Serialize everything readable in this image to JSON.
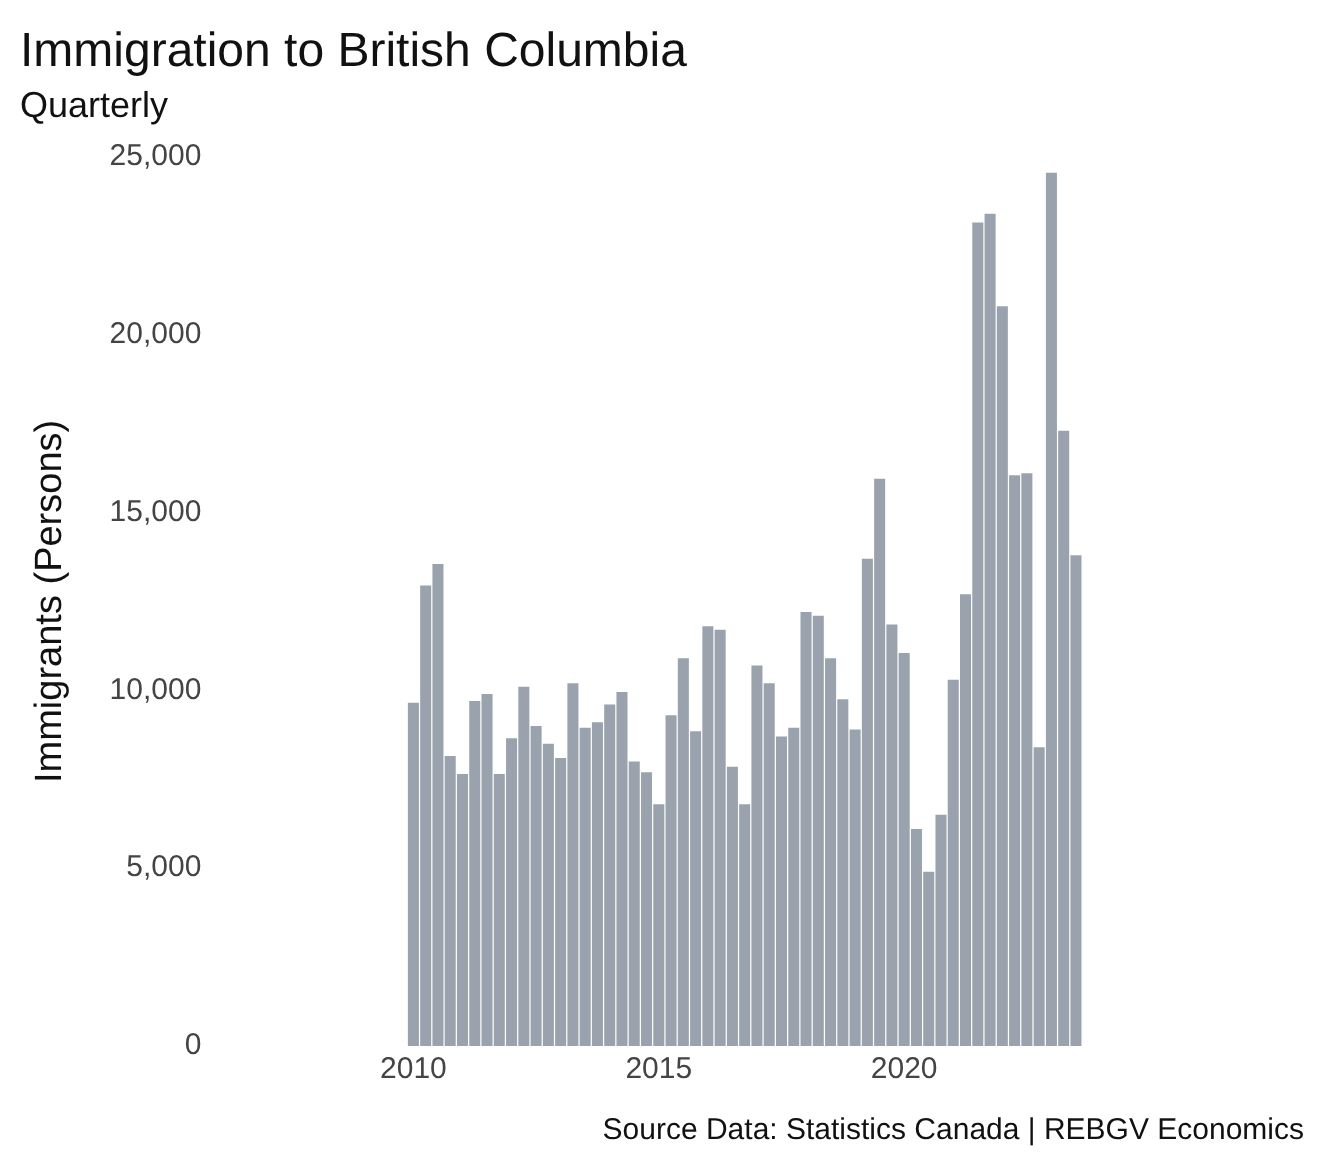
{
  "chart_data": {
    "type": "bar",
    "title": "Immigration to British Columbia",
    "subtitle": "Quarterly",
    "ylabel": "Immigrants (Persons)",
    "annotations": [
      "Source Data: Statistics Canada | REBGV Economics"
    ],
    "x": [
      "2010-01",
      "2010-04",
      "2010-07",
      "2010-10",
      "2011-01",
      "2011-04",
      "2011-07",
      "2011-10",
      "2012-01",
      "2012-04",
      "2012-07",
      "2012-10",
      "2013-01",
      "2013-04",
      "2013-07",
      "2013-10",
      "2014-01",
      "2014-04",
      "2014-07",
      "2014-10",
      "2015-01",
      "2015-04",
      "2015-07",
      "2015-10",
      "2016-01",
      "2016-04",
      "2016-07",
      "2016-10",
      "2017-01",
      "2017-04",
      "2017-07",
      "2017-10",
      "2018-01",
      "2018-04",
      "2018-07",
      "2018-10",
      "2019-01",
      "2019-04",
      "2019-07",
      "2019-10",
      "2020-01",
      "2020-04",
      "2020-07",
      "2020-10",
      "2021-01",
      "2021-04",
      "2021-07",
      "2021-10",
      "2022-01",
      "2022-04",
      "2022-07",
      "2022-10",
      "2023-01",
      "2023-04",
      "2023-07"
    ],
    "values": [
      9650,
      12950,
      13550,
      8150,
      7650,
      9700,
      9900,
      7650,
      8650,
      10100,
      9000,
      8500,
      8100,
      10200,
      8950,
      9100,
      9600,
      9950,
      8000,
      7700,
      6800,
      9300,
      10900,
      8850,
      11800,
      11700,
      7850,
      6800,
      10700,
      10200,
      8700,
      8950,
      12200,
      12100,
      10900,
      9750,
      8900,
      13700,
      15950,
      11850,
      11050,
      6100,
      4900,
      6500,
      10300,
      12700,
      23150,
      23400,
      20800,
      16050,
      16100,
      8400,
      24550,
      17300,
      13800
    ],
    "color": "#9aa3ad",
    "xlim": [
      "2009-10",
      "2023-10"
    ],
    "xticks": [
      "2010",
      "2015",
      "2020"
    ],
    "ylim": [
      0,
      25000
    ],
    "yticks": [
      {
        "value": 0,
        "label": "0"
      },
      {
        "value": 5000,
        "label": "5,000"
      },
      {
        "value": 10000,
        "label": "10,000"
      },
      {
        "value": 15000,
        "label": "15,000"
      },
      {
        "value": 20000,
        "label": "20,000"
      },
      {
        "value": 25000,
        "label": "25,000"
      }
    ],
    "grid": false,
    "legend": false
  }
}
